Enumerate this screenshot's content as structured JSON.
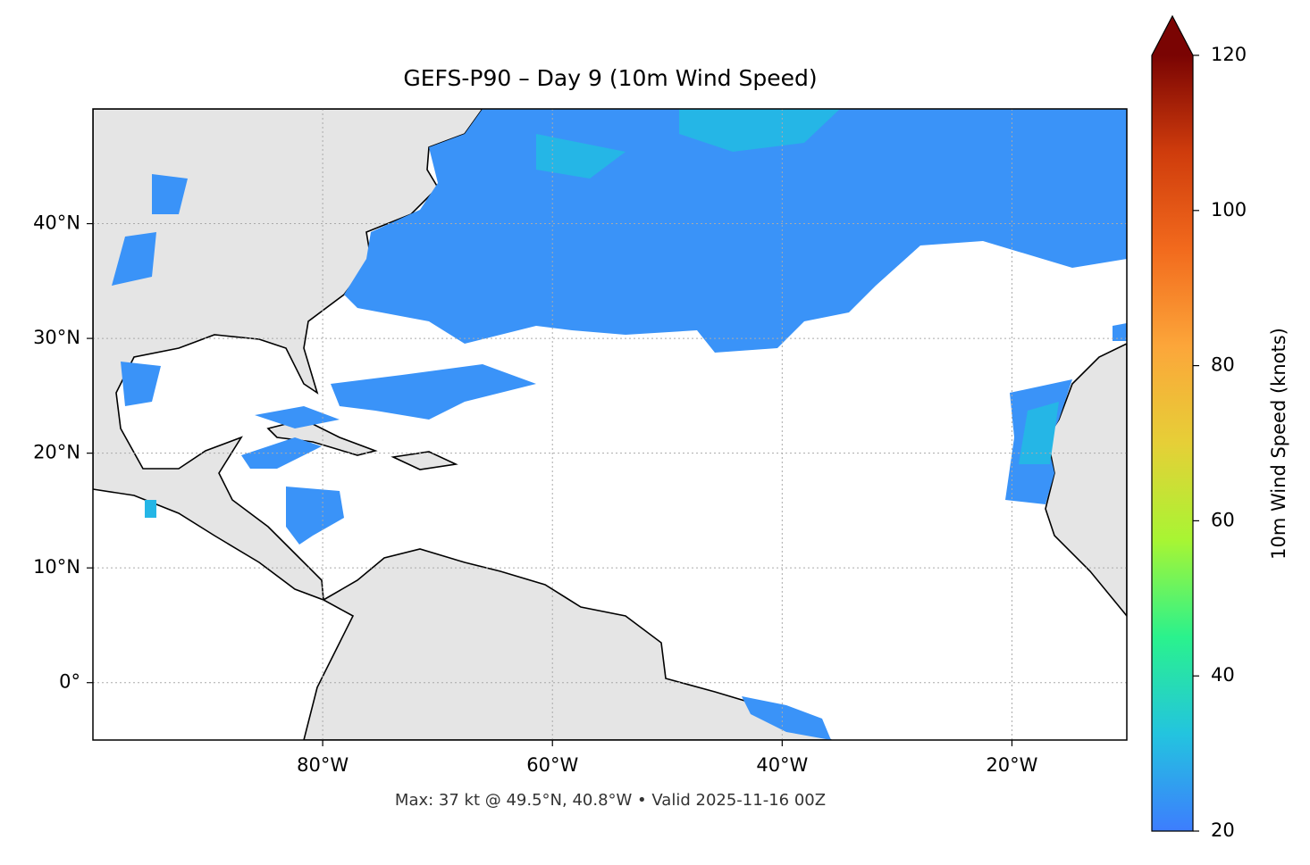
{
  "chart_data": {
    "type": "map",
    "title": "GEFS-P90 – Day 9 (10m Wind Speed)",
    "footer": "Max: 37 kt @ 49.5°N, 40.8°W • Valid 2025-11-16 00Z",
    "xlim": [
      -100,
      -10
    ],
    "ylim": [
      -5,
      50
    ],
    "xticks": [
      {
        "value": -80,
        "label": "80°W"
      },
      {
        "value": -60,
        "label": "60°W"
      },
      {
        "value": -40,
        "label": "40°W"
      },
      {
        "value": -20,
        "label": "20°W"
      }
    ],
    "yticks": [
      {
        "value": 0,
        "label": "0°"
      },
      {
        "value": 10,
        "label": "10°N"
      },
      {
        "value": 20,
        "label": "20°N"
      },
      {
        "value": 30,
        "label": "30°N"
      },
      {
        "value": 40,
        "label": "40°N"
      }
    ],
    "grid": true,
    "colorbar": {
      "label": "10m Wind Speed (knots)",
      "lim": [
        20,
        120
      ],
      "ticks": [
        20,
        40,
        60,
        80,
        100,
        120
      ],
      "colors": [
        "#3d7dfe",
        "#23c4df",
        "#2af28d",
        "#a8f533",
        "#e6cf37",
        "#fca63a",
        "#f26a1d",
        "#cf3c0c",
        "#7a0403"
      ]
    }
  }
}
